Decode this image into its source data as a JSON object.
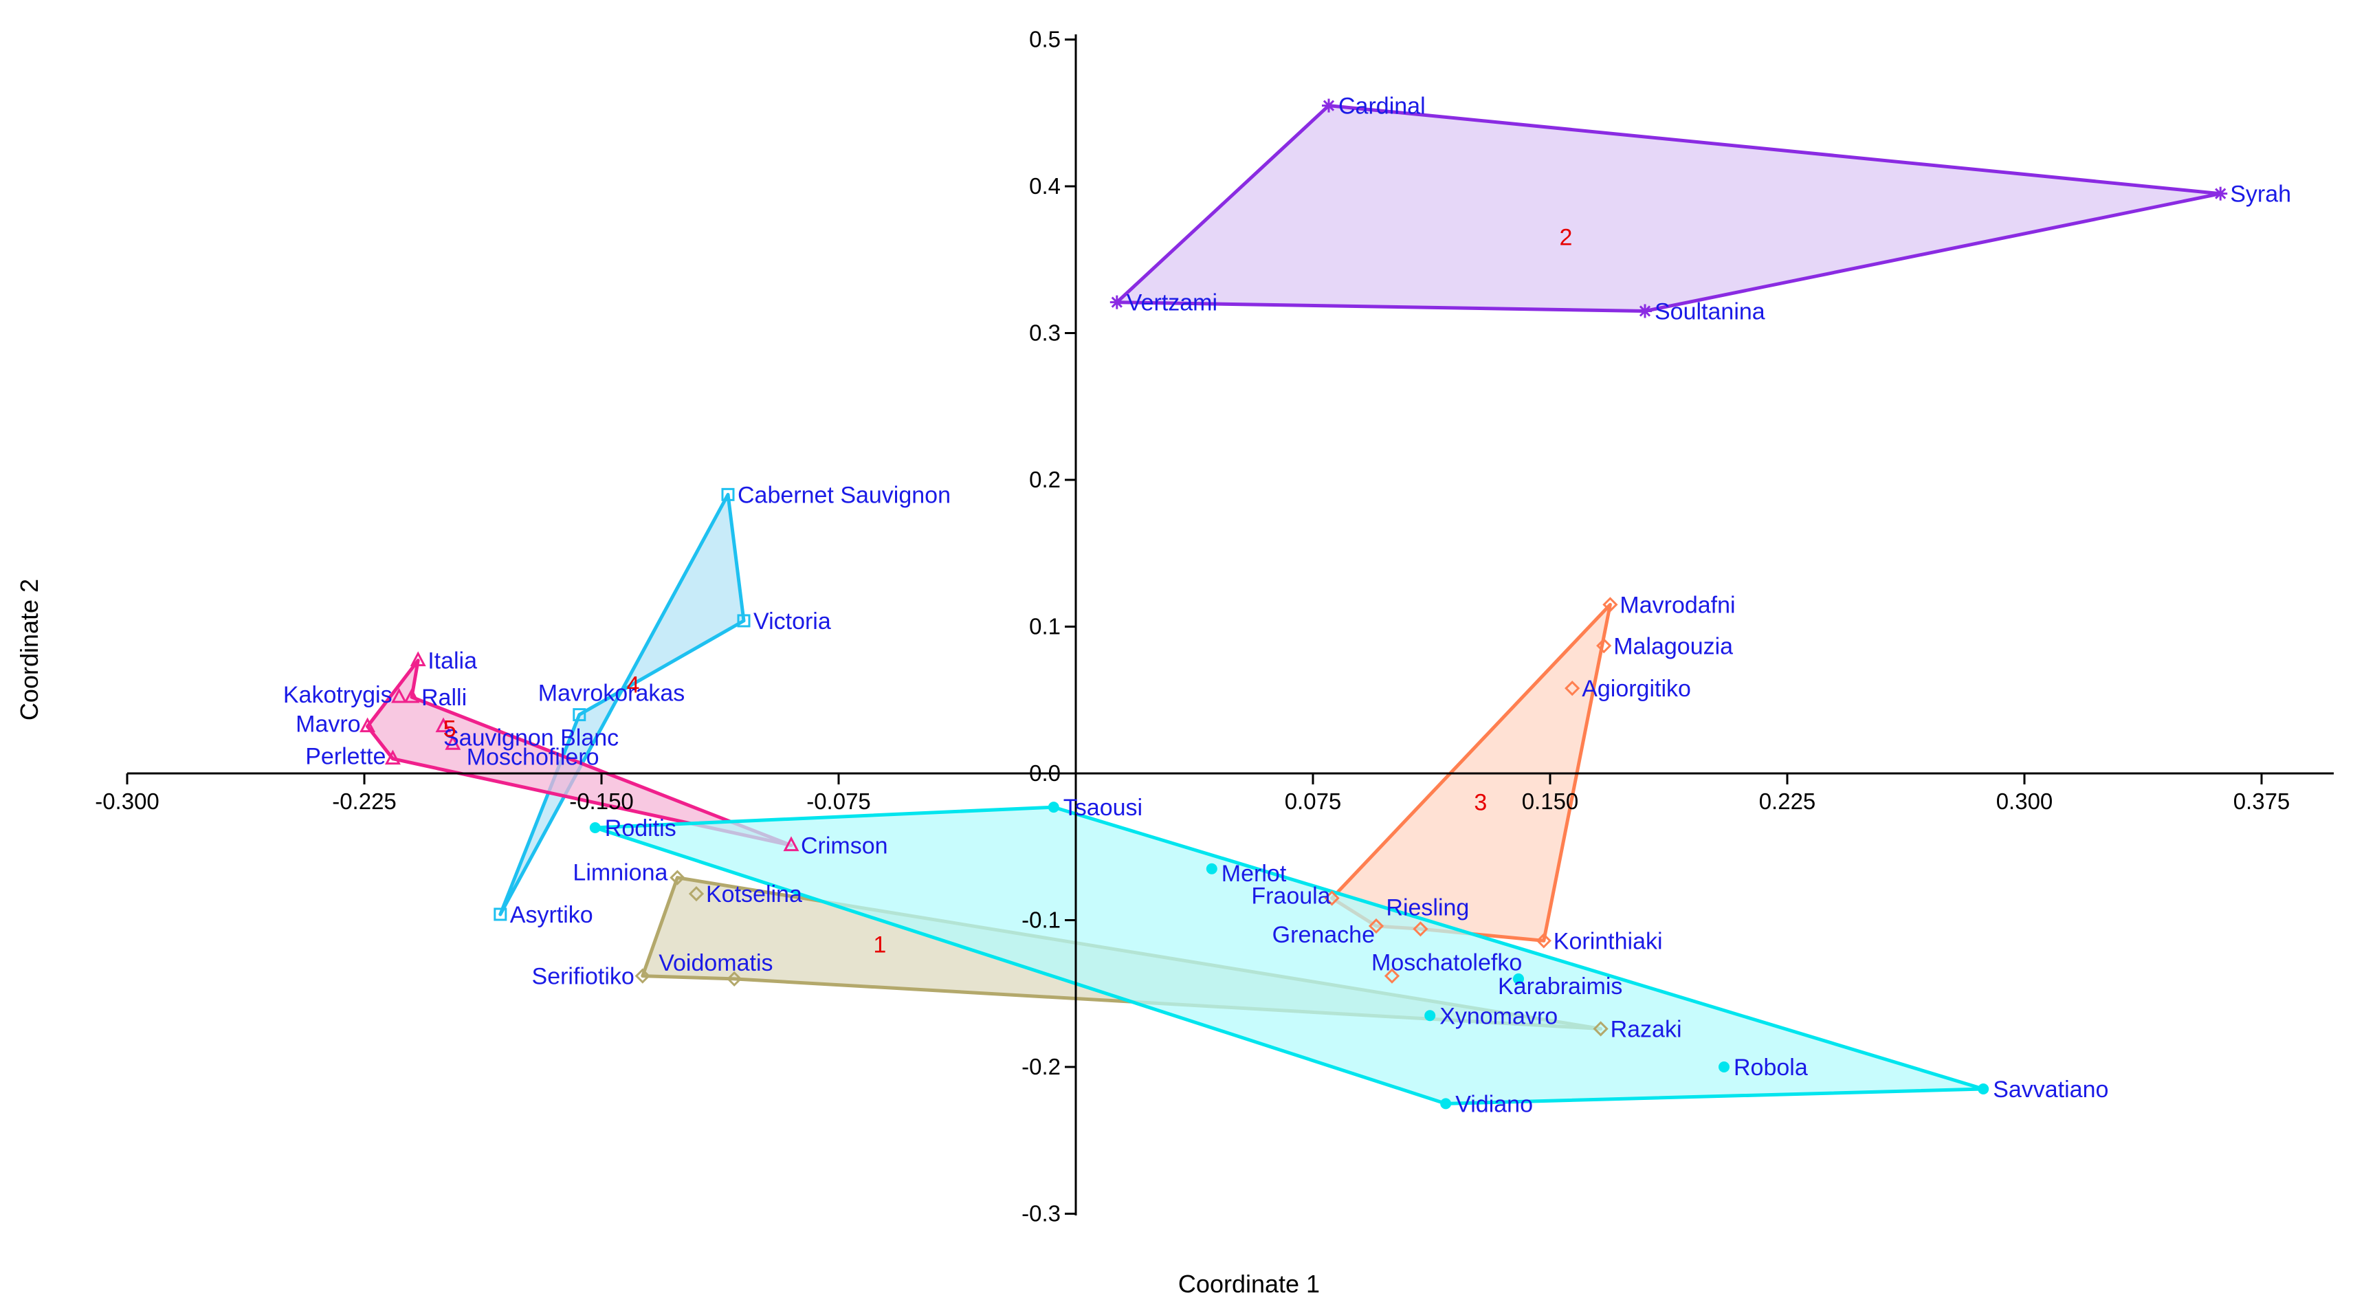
{
  "chart_data": {
    "type": "scatter",
    "title": "",
    "xlabel": "Coordinate 1",
    "ylabel": "Coordinate 2",
    "xlim": [
      -0.3,
      0.375
    ],
    "ylim": [
      -0.3,
      0.5
    ],
    "xticks": [
      -0.3,
      -0.225,
      -0.15,
      -0.075,
      0.0,
      0.075,
      0.15,
      0.225,
      0.3,
      0.375
    ],
    "xtick_labels": [
      "-0.300",
      "-0.225",
      "-0.150",
      "-0.075",
      "",
      "0.075",
      "0.150",
      "0.225",
      "0.300",
      "0.375"
    ],
    "yticks": [
      -0.3,
      -0.2,
      -0.1,
      0.0,
      0.1,
      0.2,
      0.3,
      0.4,
      0.5
    ],
    "ytick_labels": [
      "-0.3",
      "-0.2",
      "-0.1",
      "0.0",
      "0.1",
      "0.2",
      "0.3",
      "0.4",
      "0.5"
    ],
    "grid": false,
    "series": [
      {
        "name": "1",
        "color": "#b3a86b",
        "fill": "#ddd8bd",
        "marker": "diamond",
        "hull": [
          "Serifiotiko",
          "Limniona",
          "Razaki",
          "Voidomatis"
        ],
        "points": [
          {
            "name": "Limniona",
            "x": -0.126,
            "y": -0.071
          },
          {
            "name": "Kotselina",
            "x": -0.12,
            "y": -0.082
          },
          {
            "name": "Serifiotiko",
            "x": -0.137,
            "y": -0.138
          },
          {
            "name": "Voidomatis",
            "x": -0.108,
            "y": -0.14
          },
          {
            "name": "Razaki",
            "x": 0.166,
            "y": -0.174
          }
        ]
      },
      {
        "name": "2",
        "color": "#8a2be2",
        "fill": "#dcc8f5",
        "marker": "star",
        "hull": [
          "Vertzami",
          "Cardinal",
          "Syrah",
          "Soultanina"
        ],
        "points": [
          {
            "name": "Cardinal",
            "x": 0.08,
            "y": 0.455
          },
          {
            "name": "Syrah",
            "x": 0.362,
            "y": 0.395
          },
          {
            "name": "Vertzami",
            "x": 0.013,
            "y": 0.321
          },
          {
            "name": "Soultanina",
            "x": 0.18,
            "y": 0.315
          }
        ]
      },
      {
        "name": "3",
        "color": "#ff7f50",
        "fill": "#ffd5c4",
        "marker": "diamond",
        "hull": [
          "Fraoula",
          "Mavrodafni",
          "Korinthiaki",
          "Riesling",
          "Grenache"
        ],
        "points": [
          {
            "name": "Mavrodafni",
            "x": 0.169,
            "y": 0.115
          },
          {
            "name": "Malagouzia",
            "x": 0.167,
            "y": 0.087
          },
          {
            "name": "Agiorgitiko",
            "x": 0.157,
            "y": 0.058
          },
          {
            "name": "Fraoula",
            "x": 0.081,
            "y": -0.085
          },
          {
            "name": "Grenache",
            "x": 0.095,
            "y": -0.104
          },
          {
            "name": "Riesling",
            "x": 0.109,
            "y": -0.106
          },
          {
            "name": "Korinthiaki",
            "x": 0.148,
            "y": -0.114
          },
          {
            "name": "Moschatolefko",
            "x": 0.1,
            "y": -0.138
          }
        ]
      },
      {
        "name": "4",
        "color": "#1ec0f0",
        "fill": "#b3e3f7",
        "marker": "square",
        "hull": [
          "Asyrtiko",
          "Cabernet Sauvignon",
          "Victoria",
          "Mavrokorakas"
        ],
        "points": [
          {
            "name": "Cabernet Sauvignon",
            "x": -0.11,
            "y": 0.19
          },
          {
            "name": "Victoria",
            "x": -0.105,
            "y": 0.104
          },
          {
            "name": "Mavrokorakas",
            "x": -0.157,
            "y": 0.04
          },
          {
            "name": "Asyrtiko",
            "x": -0.182,
            "y": -0.096
          }
        ]
      },
      {
        "name": "5",
        "color": "#f0208c",
        "fill": "#f5b3d6",
        "marker": "triangle",
        "hull": [
          "Mavro",
          "Italia",
          "Ralli",
          "Crimson",
          "Perlette"
        ],
        "points": [
          {
            "name": "Italia",
            "x": -0.208,
            "y": 0.077
          },
          {
            "name": "Kakotrygis",
            "x": -0.214,
            "y": 0.052
          },
          {
            "name": "Ralli",
            "x": -0.21,
            "y": 0.052
          },
          {
            "name": "Mavro",
            "x": -0.224,
            "y": 0.032
          },
          {
            "name": "Sauvignon Blanc",
            "x": -0.2,
            "y": 0.032
          },
          {
            "name": "Perlette",
            "x": -0.216,
            "y": 0.01
          },
          {
            "name": "Moschofilero",
            "x": -0.197,
            "y": 0.02
          },
          {
            "name": "Crimson",
            "x": -0.09,
            "y": -0.049
          }
        ]
      },
      {
        "name": "cyan",
        "color": "#00e5ee",
        "fill": "#b3fbfc",
        "marker": "circle",
        "hull": [
          "Roditis",
          "Tsaousi",
          "Savvatiano",
          "Vidiano"
        ],
        "points": [
          {
            "name": "Tsaousi",
            "x": -0.007,
            "y": -0.023
          },
          {
            "name": "Roditis",
            "x": -0.152,
            "y": -0.037
          },
          {
            "name": "Merlot",
            "x": 0.043,
            "y": -0.065
          },
          {
            "name": "Karabraimis",
            "x": 0.14,
            "y": -0.14
          },
          {
            "name": "Xynomavro",
            "x": 0.112,
            "y": -0.165
          },
          {
            "name": "Robola",
            "x": 0.205,
            "y": -0.2
          },
          {
            "name": "Savvatiano",
            "x": 0.287,
            "y": -0.215
          },
          {
            "name": "Vidiano",
            "x": 0.117,
            "y": -0.225
          }
        ]
      }
    ],
    "cluster_labels": [
      {
        "text": "1",
        "x": -0.062,
        "y": -0.122
      },
      {
        "text": "2",
        "x": 0.155,
        "y": 0.36
      },
      {
        "text": "3",
        "x": 0.128,
        "y": -0.025
      },
      {
        "text": "4",
        "x": -0.14,
        "y": 0.055
      },
      {
        "text": "5",
        "x": -0.198,
        "y": 0.025
      }
    ]
  }
}
